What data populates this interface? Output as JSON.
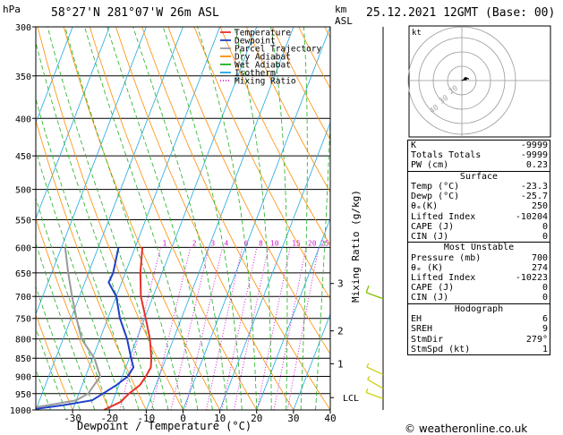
{
  "header": {
    "hpa_label": "hPa",
    "location": "58°27'N  281°07'W  26m  ASL",
    "km_label": "km",
    "asl_label": "ASL",
    "datetime": "25.12.2021  12GMT  (Base: 00)"
  },
  "footer": {
    "copyright": "© weatheronline.co.uk"
  },
  "chart_data": {
    "type": "skew-t log-p",
    "xlabel": "Dewpoint / Temperature (°C)",
    "ylabel_right": "Mixing Ratio (g/kg)",
    "pressure_levels": [
      300,
      350,
      400,
      450,
      500,
      550,
      600,
      650,
      700,
      750,
      800,
      850,
      900,
      950,
      1000
    ],
    "temperature_ticks": [
      -30,
      -20,
      -10,
      0,
      10,
      20,
      30,
      40
    ],
    "xlim": [
      -40,
      40
    ],
    "ylim": [
      1000,
      300
    ],
    "km_ticks": [
      {
        "p": 865,
        "label": "1"
      },
      {
        "p": 780,
        "label": "2"
      },
      {
        "p": 672,
        "label": "3"
      }
    ],
    "lcl": {
      "p": 962,
      "label": "LCL"
    },
    "mixing_ratio_labels": [
      "1",
      "2",
      "3",
      "4",
      "6",
      "8",
      "10",
      "15",
      "20",
      "25"
    ],
    "mixing_ratio_values": [
      1,
      2,
      3,
      4,
      6,
      8,
      10,
      15,
      20,
      25
    ],
    "legend": [
      {
        "label": "Temperature",
        "color": "#e8302a",
        "style": "solid"
      },
      {
        "label": "Dewpoint",
        "color": "#2040c8",
        "style": "solid"
      },
      {
        "label": "Parcel Trajectory",
        "color": "#9a9a9a",
        "style": "solid"
      },
      {
        "label": "Dry Adiabat",
        "color": "#ff8c00",
        "style": "solid"
      },
      {
        "label": "Wet Adiabat",
        "color": "#20b020",
        "style": "solid"
      },
      {
        "label": "Isotherm",
        "color": "#20a8e0",
        "style": "solid"
      },
      {
        "label": "Mixing Ratio",
        "color": "#d020d0",
        "style": "dotted"
      }
    ],
    "series": [
      {
        "name": "Temperature",
        "color": "#e8302a",
        "points": [
          [
            1000,
            -21.5
          ],
          [
            975,
            -17.8
          ],
          [
            950,
            -16.4
          ],
          [
            925,
            -14.3
          ],
          [
            900,
            -13.6
          ],
          [
            875,
            -13.2
          ],
          [
            850,
            -14.0
          ],
          [
            800,
            -16.4
          ],
          [
            750,
            -19.7
          ],
          [
            700,
            -23.3
          ],
          [
            650,
            -25.9
          ],
          [
            600,
            -28.0
          ]
        ]
      },
      {
        "name": "Dewpoint",
        "color": "#2040c8",
        "points": [
          [
            1000,
            -42.0
          ],
          [
            985,
            -33.0
          ],
          [
            970,
            -25.7
          ],
          [
            950,
            -23.5
          ],
          [
            925,
            -20.7
          ],
          [
            900,
            -18.5
          ],
          [
            875,
            -17.9
          ],
          [
            850,
            -19.5
          ],
          [
            800,
            -22.6
          ],
          [
            750,
            -26.7
          ],
          [
            700,
            -30.0
          ],
          [
            670,
            -33.5
          ],
          [
            650,
            -33.3
          ],
          [
            600,
            -34.5
          ]
        ]
      },
      {
        "name": "Parcel Trajectory",
        "color": "#9a9a9a",
        "points": [
          [
            1000,
            -44.5
          ],
          [
            985,
            -37.0
          ],
          [
            970,
            -30.0
          ],
          [
            950,
            -27.5
          ],
          [
            900,
            -26.0
          ],
          [
            850,
            -29.5
          ],
          [
            800,
            -35.0
          ],
          [
            750,
            -38.5
          ],
          [
            700,
            -42.0
          ],
          [
            650,
            -45.5
          ],
          [
            600,
            -49.0
          ]
        ]
      }
    ],
    "dry_adiabat_thetas": [
      -60,
      -50,
      -40,
      -30,
      -20,
      -10,
      0,
      10,
      20,
      30,
      40,
      50,
      60,
      70,
      80,
      90,
      100,
      110,
      120,
      130,
      140,
      150,
      160,
      170,
      180,
      190,
      200,
      210,
      220,
      230,
      240,
      250,
      260,
      270,
      280,
      290,
      300,
      310,
      320
    ],
    "wind_barbs": [
      {
        "p": 965,
        "dir": 250,
        "spd": 5,
        "color": "#d0d010"
      },
      {
        "p": 935,
        "dir": 240,
        "spd": 5,
        "color": "#d0d010"
      },
      {
        "p": 895,
        "dir": 245,
        "spd": 5,
        "color": "#d0d010"
      },
      {
        "p": 705,
        "dir": 250,
        "spd": 10,
        "color": "#80c000"
      }
    ],
    "hodograph": {
      "label": "kt",
      "ring_labels": [
        "40",
        "30",
        "20"
      ],
      "points": [
        [
          0,
          0
        ],
        [
          2,
          1
        ],
        [
          3,
          2
        ],
        [
          5,
          1
        ]
      ]
    }
  },
  "indices": {
    "top": [
      {
        "label": "K",
        "value": "-9999"
      },
      {
        "label": "Totals Totals",
        "value": "-9999"
      },
      {
        "label": "PW (cm)",
        "value": "0.23"
      }
    ],
    "surface": {
      "title": "Surface",
      "rows": [
        {
          "label": "Temp (°C)",
          "value": "-23.3"
        },
        {
          "label": "Dewp (°C)",
          "value": "-25.7"
        },
        {
          "label": "θₑ(K)",
          "value": "250"
        },
        {
          "label": "Lifted Index",
          "value": "-10204"
        },
        {
          "label": "CAPE (J)",
          "value": "0"
        },
        {
          "label": "CIN (J)",
          "value": "0"
        }
      ]
    },
    "most_unstable": {
      "title": "Most Unstable",
      "rows": [
        {
          "label": "Pressure (mb)",
          "value": "700"
        },
        {
          "label": "θₑ (K)",
          "value": "274"
        },
        {
          "label": "Lifted Index",
          "value": "-10223"
        },
        {
          "label": "CAPE (J)",
          "value": "0"
        },
        {
          "label": "CIN (J)",
          "value": "0"
        }
      ]
    },
    "hodograph": {
      "title": "Hodograph",
      "rows": [
        {
          "label": "EH",
          "value": "6"
        },
        {
          "label": "SREH",
          "value": "9"
        },
        {
          "label": "StmDir",
          "value": "279°"
        },
        {
          "label": "StmSpd (kt)",
          "value": "1"
        }
      ]
    }
  }
}
